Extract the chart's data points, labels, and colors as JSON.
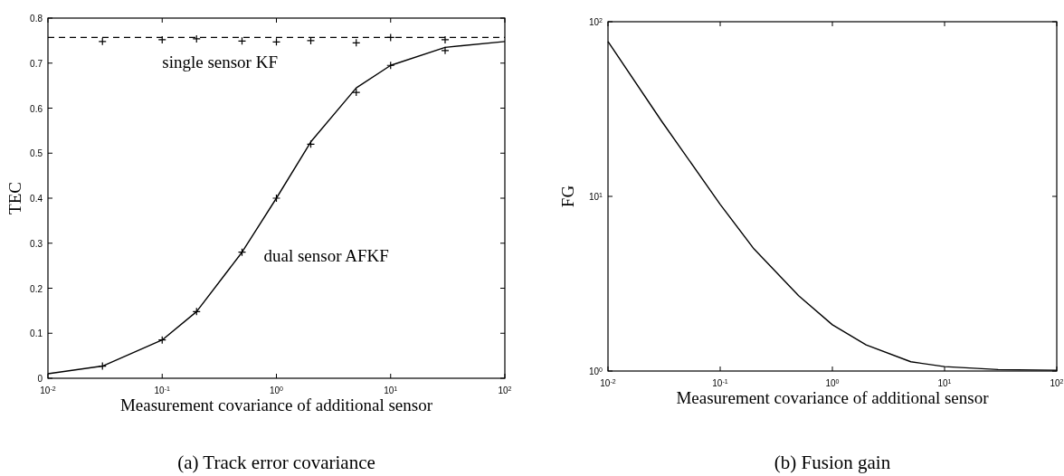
{
  "chart_data": [
    {
      "type": "line",
      "title": "(a) Track error covariance",
      "xlabel": "Measurement covariance of additional sensor",
      "ylabel": "TEC",
      "log": "x",
      "xlim": [
        0.01,
        100
      ],
      "xticks": [
        {
          "value": 0.01,
          "label": "10$^{-2}$"
        },
        {
          "value": 0.1,
          "label": "10$^{-1}$"
        },
        {
          "value": 1,
          "label": "10$^{0}$"
        },
        {
          "value": 10,
          "label": "10$^{1}$"
        },
        {
          "value": 100,
          "label": "10$^{2}$"
        }
      ],
      "ylim": [
        0,
        0.8
      ],
      "yticks": [
        0,
        0.1,
        0.2,
        0.3,
        0.4,
        0.5,
        0.6,
        0.7,
        0.8
      ],
      "series": [
        {
          "name": "single sensor KF",
          "line_style": "dashed",
          "color": "#000000",
          "x": [
            0.01,
            100
          ],
          "values": [
            0.757,
            0.757
          ]
        },
        {
          "type": "scatter",
          "marker": "cross",
          "color": "#000000",
          "x": [
            0.03,
            0.1,
            0.2,
            0.5,
            1,
            2,
            5,
            10,
            30
          ],
          "values": [
            0.748,
            0.752,
            0.754,
            0.749,
            0.747,
            0.75,
            0.745,
            0.757,
            0.752
          ]
        },
        {
          "name": "dual sensor AFKF",
          "line_style": "solid",
          "color": "#000000",
          "x": [
            0.01,
            0.03,
            0.1,
            0.2,
            0.5,
            1,
            2,
            5,
            10,
            30,
            100
          ],
          "values": [
            0.01,
            0.027,
            0.085,
            0.148,
            0.28,
            0.4,
            0.525,
            0.645,
            0.695,
            0.735,
            0.748
          ]
        },
        {
          "type": "scatter",
          "marker": "cross",
          "color": "#000000",
          "x": [
            0.03,
            0.1,
            0.2,
            0.5,
            1,
            2,
            5,
            10,
            30
          ],
          "values": [
            0.027,
            0.085,
            0.148,
            0.28,
            0.4,
            0.52,
            0.635,
            0.695,
            0.728
          ]
        }
      ]
    },
    {
      "type": "line",
      "title": "(b) Fusion gain",
      "xlabel": "Measurement covariance of additional sensor",
      "ylabel": "FG",
      "log": "xy",
      "xlim": [
        0.01,
        100
      ],
      "xticks": [
        {
          "value": 0.01,
          "label": "10$^{-2}$"
        },
        {
          "value": 0.1,
          "label": "10$^{-1}$"
        },
        {
          "value": 1,
          "label": "10$^{0}$"
        },
        {
          "value": 10,
          "label": "10$^{1}$"
        },
        {
          "value": 100,
          "label": "10$^{2}$"
        }
      ],
      "ylim": [
        1,
        100
      ],
      "yticks": [
        {
          "value": 1,
          "label": "10$^{0}$"
        },
        {
          "value": 10,
          "label": "10$^{1}$"
        },
        {
          "value": 100,
          "label": "10$^{2}$"
        }
      ],
      "series": [
        {
          "line_style": "solid",
          "color": "#000000",
          "x": [
            0.01,
            0.03,
            0.1,
            0.2,
            0.5,
            1,
            2,
            5,
            10,
            30,
            100
          ],
          "values": [
            77,
            27,
            9,
            5,
            2.7,
            1.84,
            1.41,
            1.13,
            1.06,
            1.02,
            1.01
          ]
        }
      ]
    }
  ]
}
